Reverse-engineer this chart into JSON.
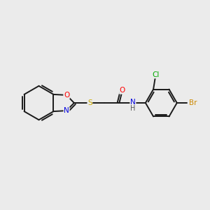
{
  "background_color": "#ebebeb",
  "bond_color": "#1a1a1a",
  "atom_colors": {
    "O": "#ff0000",
    "N": "#0000dd",
    "S": "#ccaa00",
    "Br": "#cc8800",
    "Cl": "#00aa00",
    "H": "#555555"
  },
  "figsize": [
    3.0,
    3.0
  ],
  "dpi": 100,
  "lw": 1.4,
  "fontsize": 7.5,
  "xlim": [
    0,
    10
  ],
  "ylim": [
    2,
    8.5
  ]
}
